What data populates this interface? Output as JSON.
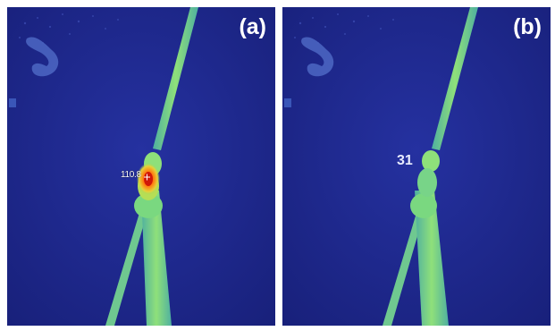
{
  "panels": {
    "a": {
      "label": "(a)",
      "temperature_readout": "110.8"
    },
    "b": {
      "label": "(b)",
      "temperature_readout": "31"
    }
  },
  "colors": {
    "background": "#1f2a8c",
    "background_dark": "#18207a",
    "rod": "#6fd08a",
    "rod_edge": "#4fb0a0",
    "hotspot_center": "#e02010",
    "hotspot_mid": "#ff7a10",
    "hotspot_outer": "#e6d23a",
    "blob": "#5a76c8",
    "divider": "#ffffff"
  },
  "icons": [
    "thermal-image-a",
    "thermal-image-b"
  ]
}
